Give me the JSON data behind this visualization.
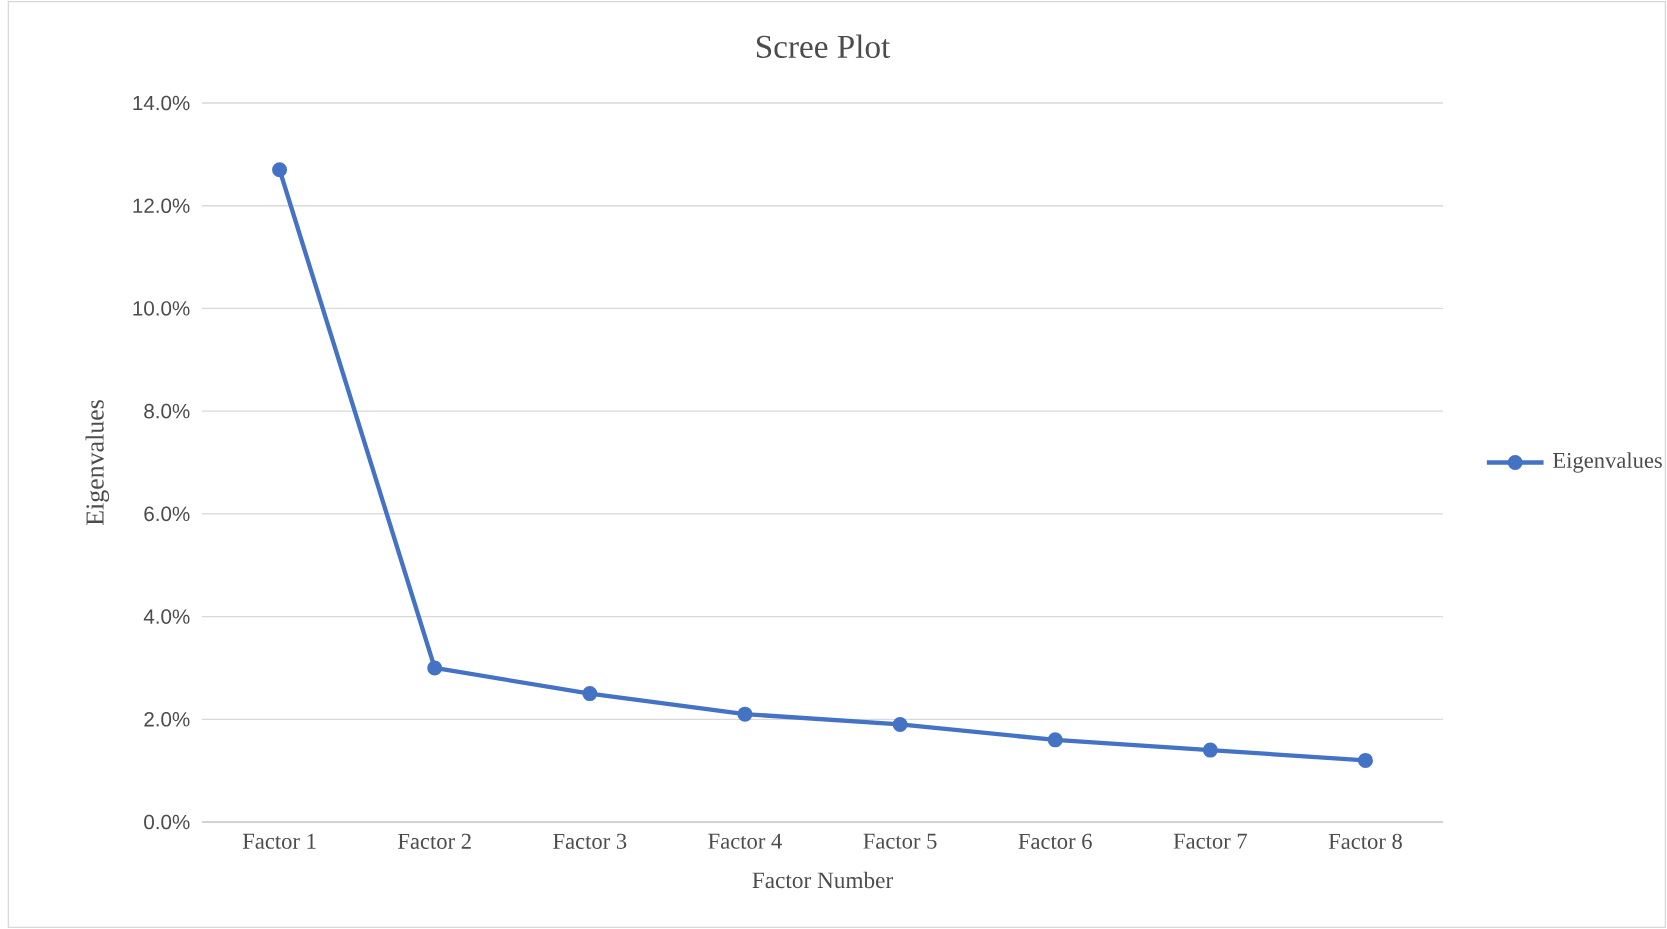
{
  "chart_data": {
    "type": "line",
    "title": "Scree Plot",
    "xlabel": "Factor Number",
    "ylabel": "Eigenvalues",
    "categories": [
      "Factor 1",
      "Factor 2",
      "Factor 3",
      "Factor 4",
      "Factor 5",
      "Factor 6",
      "Factor 7",
      "Factor 8"
    ],
    "series": [
      {
        "name": "Eigenvalues",
        "color": "#4472c4",
        "values": [
          12.7,
          3.0,
          2.5,
          2.1,
          1.9,
          1.6,
          1.4,
          1.2
        ]
      }
    ],
    "ylim": [
      0,
      14
    ],
    "yticks": [
      {
        "value": 0,
        "label": "0.0%"
      },
      {
        "value": 2,
        "label": "2.0%"
      },
      {
        "value": 4,
        "label": "4.0%"
      },
      {
        "value": 6,
        "label": "6.0%"
      },
      {
        "value": 8,
        "label": "8.0%"
      },
      {
        "value": 10,
        "label": "10.0%"
      },
      {
        "value": 12,
        "label": "12.0%"
      },
      {
        "value": 14,
        "label": "14.0%"
      }
    ],
    "grid": "y",
    "legend": "right",
    "marker": "circle",
    "line_style": "solid"
  }
}
